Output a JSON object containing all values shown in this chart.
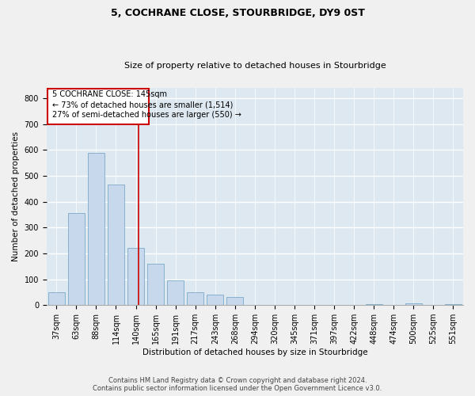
{
  "title": "5, COCHRANE CLOSE, STOURBRIDGE, DY9 0ST",
  "subtitle": "Size of property relative to detached houses in Stourbridge",
  "xlabel": "Distribution of detached houses by size in Stourbridge",
  "ylabel": "Number of detached properties",
  "footer_line1": "Contains HM Land Registry data © Crown copyright and database right 2024.",
  "footer_line2": "Contains public sector information licensed under the Open Government Licence v3.0.",
  "annotation_line1": "5 COCHRANE CLOSE: 145sqm",
  "annotation_line2": "← 73% of detached houses are smaller (1,514)",
  "annotation_line3": "27% of semi-detached houses are larger (550) →",
  "bar_color": "#c8d8ec",
  "bar_edge_color": "#7aaac8",
  "vline_color": "#cc0000",
  "annotation_box_edgecolor": "#cc0000",
  "annotation_box_facecolor": "#ffffff",
  "categories": [
    "37sqm",
    "63sqm",
    "88sqm",
    "114sqm",
    "140sqm",
    "165sqm",
    "191sqm",
    "217sqm",
    "243sqm",
    "268sqm",
    "294sqm",
    "320sqm",
    "345sqm",
    "371sqm",
    "397sqm",
    "422sqm",
    "448sqm",
    "474sqm",
    "500sqm",
    "525sqm",
    "551sqm"
  ],
  "values": [
    50,
    355,
    590,
    465,
    222,
    160,
    97,
    50,
    40,
    30,
    0,
    0,
    0,
    0,
    0,
    0,
    5,
    0,
    8,
    0,
    5
  ],
  "ylim": [
    0,
    840
  ],
  "yticks": [
    0,
    100,
    200,
    300,
    400,
    500,
    600,
    700,
    800
  ],
  "vline_x": 4.15,
  "background_color": "#dde8f0",
  "grid_color": "#ffffff",
  "figure_facecolor": "#f0f0f0",
  "title_fontsize": 9,
  "subtitle_fontsize": 8,
  "axis_label_fontsize": 7.5,
  "tick_fontsize": 7,
  "footer_fontsize": 6,
  "annotation_fontsize": 7
}
